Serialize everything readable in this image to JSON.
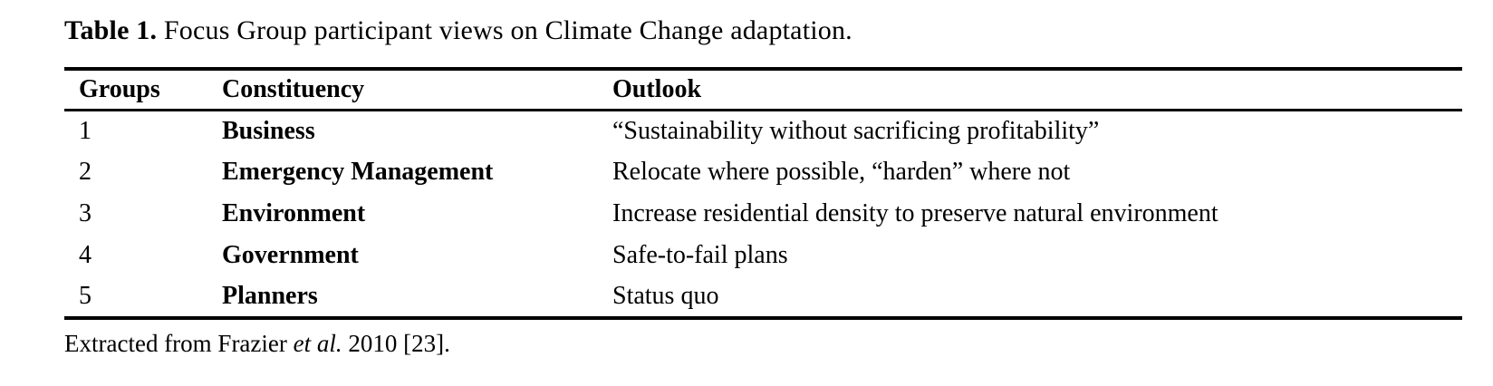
{
  "caption": {
    "label": "Table 1.",
    "text": " Focus Group participant views on Climate Change adaptation."
  },
  "table": {
    "headers": {
      "groups": "Groups",
      "constituency": "Constituency",
      "outlook": "Outlook"
    },
    "rows": [
      {
        "group": "1",
        "constituency": "Business",
        "outlook": "“Sustainability without sacrificing profitability”"
      },
      {
        "group": "2",
        "constituency": "Emergency Management",
        "outlook": "Relocate where possible, “harden” where not"
      },
      {
        "group": "3",
        "constituency": "Environment",
        "outlook": "Increase residential density to preserve natural environment"
      },
      {
        "group": "4",
        "constituency": "Government",
        "outlook": "Safe-to-fail plans"
      },
      {
        "group": "5",
        "constituency": "Planners",
        "outlook": "Status quo"
      }
    ]
  },
  "footnote": {
    "prefix": "Extracted from Frazier ",
    "italic": "et al.",
    "suffix": " 2010 [23]."
  },
  "colors": {
    "text": "#000000",
    "background": "#ffffff",
    "rule": "#000000"
  }
}
